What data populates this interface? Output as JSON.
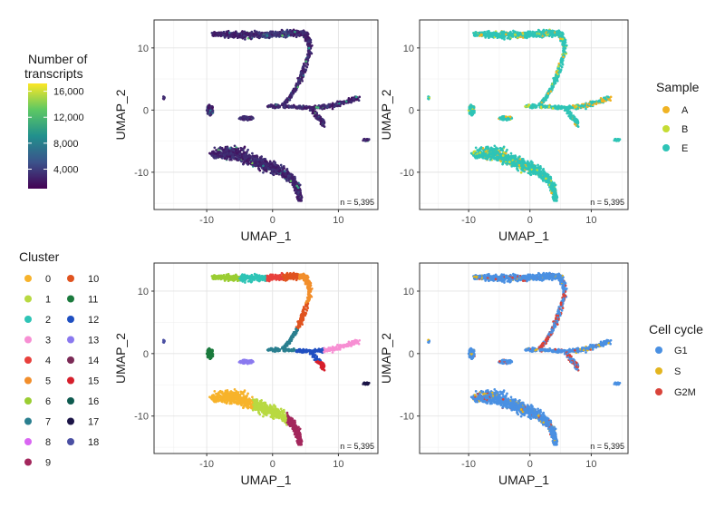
{
  "chart_data": [
    {
      "type": "scatter",
      "panel": "top-left",
      "title": "",
      "xlabel": "UMAP_1",
      "ylabel": "UMAP_2",
      "xlim": [
        -18,
        16
      ],
      "ylim": [
        -16,
        14.5
      ],
      "xticks": [
        -10,
        0,
        10
      ],
      "yticks": [
        -10,
        0,
        10
      ],
      "grid": true,
      "annotation": "n = 5,395",
      "color_by": "Number of transcripts",
      "color_scale": "viridis",
      "legend": {
        "title": "Number of transcripts",
        "ticks": [
          "16,000",
          "12,000",
          "8,000",
          "4,000"
        ]
      }
    },
    {
      "type": "scatter",
      "panel": "top-right",
      "xlabel": "UMAP_1",
      "ylabel": "UMAP_2",
      "xlim": [
        -18,
        16
      ],
      "ylim": [
        -16,
        14.5
      ],
      "xticks": [
        -10,
        0,
        10
      ],
      "yticks": [
        -10,
        0,
        10
      ],
      "grid": true,
      "annotation": "n = 5,395",
      "color_by": "Sample",
      "legend": {
        "title": "Sample",
        "placement": "right",
        "entries": [
          "A",
          "B",
          "E"
        ]
      }
    },
    {
      "type": "scatter",
      "panel": "bottom-left",
      "xlabel": "UMAP_1",
      "ylabel": "UMAP_2",
      "xlim": [
        -18,
        16
      ],
      "ylim": [
        -16,
        14.5
      ],
      "xticks": [
        -10,
        0,
        10
      ],
      "yticks": [
        -10,
        0,
        10
      ],
      "grid": true,
      "annotation": "n = 5,395",
      "color_by": "Cluster",
      "legend": {
        "title": "Cluster",
        "placement": "left",
        "entries": [
          "0",
          "1",
          "2",
          "3",
          "4",
          "5",
          "6",
          "7",
          "8",
          "9",
          "10",
          "11",
          "12",
          "13",
          "14",
          "15",
          "16",
          "17",
          "18"
        ]
      }
    },
    {
      "type": "scatter",
      "panel": "bottom-right",
      "xlabel": "UMAP_1",
      "ylabel": "UMAP_2",
      "xlim": [
        -18,
        16
      ],
      "ylim": [
        -16,
        14.5
      ],
      "xticks": [
        -10,
        0,
        10
      ],
      "yticks": [
        -10,
        0,
        10
      ],
      "grid": true,
      "annotation": "n = 5,395",
      "color_by": "Cell cycle",
      "legend": {
        "title": "Cell cycle",
        "placement": "right",
        "entries": [
          "G1",
          "S",
          "G2M"
        ]
      }
    }
  ],
  "colors": {
    "viridis": [
      "#440154",
      "#3b528b",
      "#21908d",
      "#5dc863",
      "#fde725"
    ],
    "sample": {
      "A": "#f0b323",
      "B": "#c5dc34",
      "E": "#2ec4b6"
    },
    "cluster": [
      "#f7b32b",
      "#b8d941",
      "#2ec4b6",
      "#f78fd3",
      "#e8403c",
      "#f28e2b",
      "#9acd32",
      "#2a7f8f",
      "#d966f2",
      "#a3275c",
      "#e0531f",
      "#1b7a3d",
      "#1f4fc1",
      "#8a79ef",
      "#7b2a56",
      "#d61f2c",
      "#0e5a4f",
      "#1b1446",
      "#4a4fa3"
    ],
    "cycle": {
      "G1": "#4a90e2",
      "S": "#e3b51f",
      "G2M": "#d9433a"
    }
  }
}
